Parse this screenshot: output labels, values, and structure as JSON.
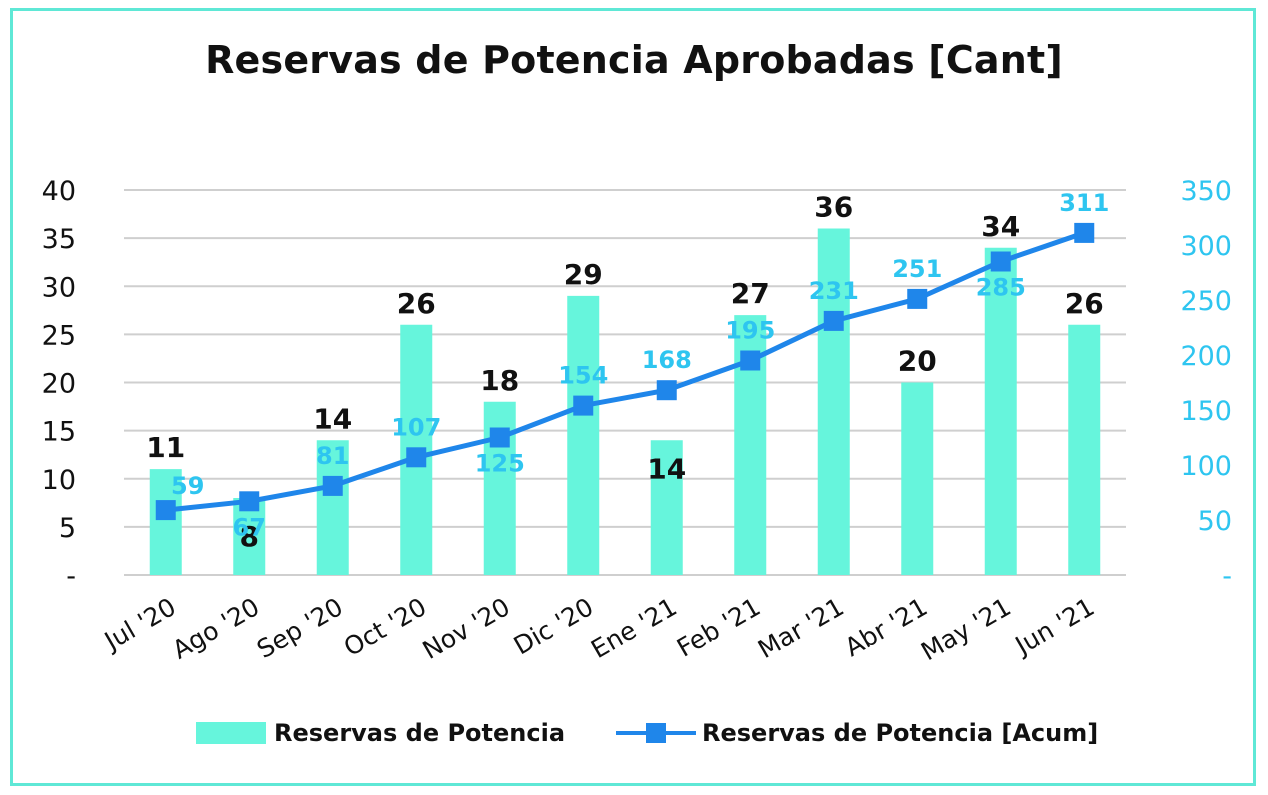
{
  "chart_data": {
    "type": "bar",
    "title": "Reservas de Potencia Aprobadas [Cant]",
    "categories": [
      "Jul '20",
      "Ago '20",
      "Sep '20",
      "Oct '20",
      "Nov '20",
      "Dic '20",
      "Ene '21",
      "Feb '21",
      "Mar '21",
      "Abr '21",
      "May '21",
      "Jun '21"
    ],
    "series": [
      {
        "name": "Reservas de Potencia",
        "type": "bar",
        "axis": "left",
        "values": [
          11,
          8,
          14,
          26,
          18,
          29,
          14,
          27,
          36,
          20,
          34,
          26
        ]
      },
      {
        "name": "Reservas de Potencia [Acum]",
        "type": "line",
        "axis": "right",
        "values": [
          59,
          67,
          81,
          107,
          125,
          154,
          168,
          195,
          231,
          251,
          285,
          311
        ]
      }
    ],
    "left_axis": {
      "min": 0,
      "max": 40,
      "ticks": [
        "-",
        "5",
        "10",
        "15",
        "20",
        "25",
        "30",
        "35",
        "40"
      ]
    },
    "right_axis": {
      "min": 0,
      "max": 350,
      "ticks": [
        "-",
        "50",
        "100",
        "150",
        "200",
        "250",
        "300",
        "350"
      ]
    },
    "grid": true,
    "legend_position": "bottom",
    "colors": {
      "bar": "#66f5dc",
      "line": "#1f86ea",
      "line_label": "#2ec5f0",
      "bar_label": "#111111",
      "grid": "#cfcfcf",
      "frame": "#5fe8d6"
    }
  }
}
